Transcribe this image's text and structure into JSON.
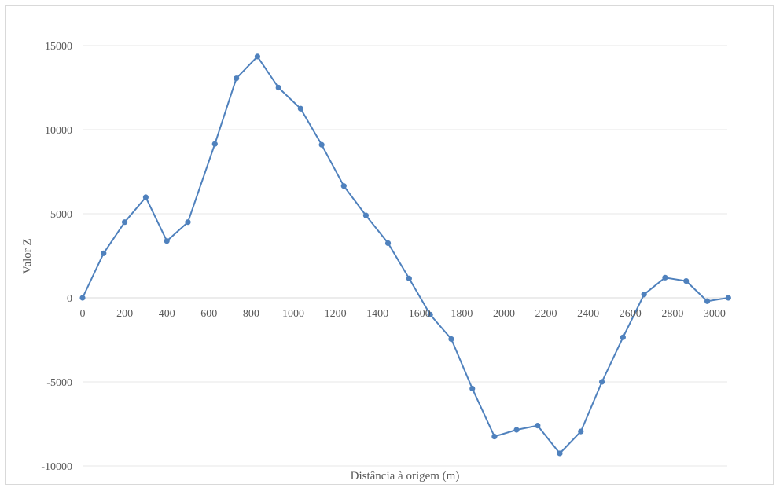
{
  "chart_data": {
    "type": "line",
    "title": "",
    "xlabel": "Distância à origem (m)",
    "ylabel": "Valor Z",
    "xlim": [
      0,
      3060
    ],
    "ylim": [
      -10000,
      15000
    ],
    "x_ticks": [
      0,
      200,
      400,
      600,
      800,
      1000,
      1200,
      1400,
      1600,
      1800,
      2000,
      2200,
      2400,
      2600,
      2800,
      3000
    ],
    "y_ticks": [
      -10000,
      -5000,
      0,
      5000,
      10000,
      15000
    ],
    "grid": "horizontal",
    "legend": "none",
    "color": "#4f81bd",
    "series": [
      {
        "x": [
          0,
          100,
          200,
          300,
          400,
          500,
          628,
          730,
          830,
          930,
          1035,
          1135,
          1240,
          1345,
          1450,
          1550,
          1650,
          1750,
          1850,
          1955,
          2060,
          2160,
          2265,
          2365,
          2465,
          2565,
          2665,
          2765,
          2865,
          2965,
          3065
        ],
        "y": [
          0,
          2650,
          4500,
          5980,
          3380,
          4500,
          9150,
          13050,
          14350,
          12500,
          11250,
          9100,
          6650,
          4900,
          3250,
          1150,
          -1000,
          -2450,
          -5400,
          -8250,
          -7850,
          -7600,
          -9250,
          -7950,
          -5000,
          -2350,
          200,
          1200,
          1000,
          -200,
          0
        ]
      }
    ]
  }
}
